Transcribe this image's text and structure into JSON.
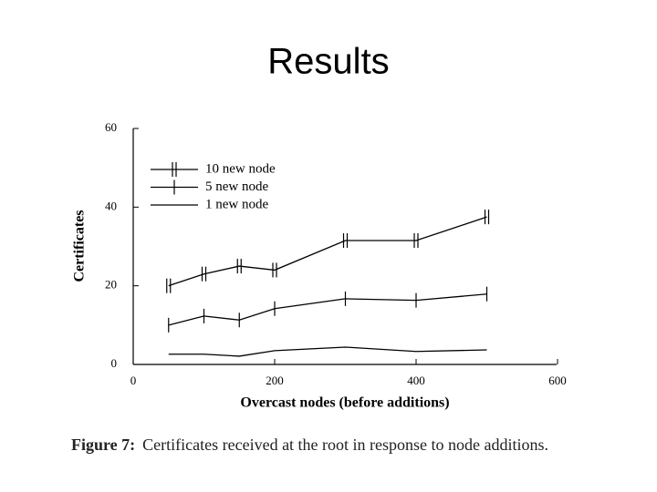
{
  "slide_title": "Results",
  "caption": {
    "label": "Figure 7:",
    "text": "Certificates received at the root in response to node additions."
  },
  "chart_data": {
    "type": "line",
    "x_label": "Overcast nodes (before additions)",
    "y_label": "Certificates",
    "x": [
      50,
      100,
      150,
      200,
      300,
      400,
      500
    ],
    "series": [
      {
        "name": "10 new node",
        "color": "#000000",
        "marker": "double-tick",
        "values": [
          20,
          23,
          25,
          24,
          31.5,
          31.5,
          37.5
        ]
      },
      {
        "name": "5 new node",
        "color": "#000000",
        "marker": "tick",
        "values": [
          10,
          12.3,
          11.3,
          14.2,
          16.7,
          16.3,
          17.9
        ]
      },
      {
        "name": "1 new node",
        "color": "#000000",
        "marker": "none",
        "values": [
          2.6,
          2.6,
          2.1,
          3.5,
          4.4,
          3.3,
          3.7
        ]
      }
    ],
    "xlim": [
      0,
      600
    ],
    "ylim": [
      0,
      60
    ],
    "xticks": [
      0,
      200,
      400,
      600
    ],
    "yticks": [
      0,
      20,
      40,
      60
    ],
    "legend": "upper left",
    "grid": false
  }
}
